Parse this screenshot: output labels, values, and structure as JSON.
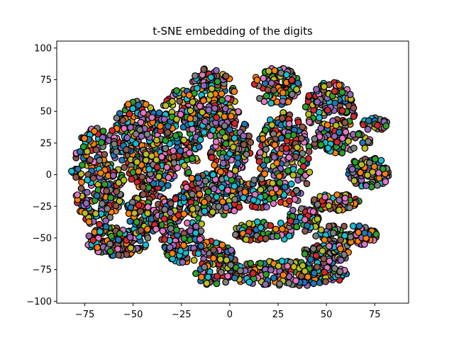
{
  "chart_data": {
    "type": "scatter",
    "title": "t-SNE embedding of the digits",
    "xlabel": "",
    "ylabel": "",
    "xlim": [
      -89.5,
      92.5
    ],
    "ylim": [
      -101.5,
      105.5
    ],
    "x_ticks": [
      -75,
      -50,
      -25,
      0,
      25,
      50,
      75
    ],
    "y_ticks": [
      -100,
      -75,
      -50,
      -25,
      0,
      25,
      50,
      75,
      100
    ],
    "grid": false,
    "legend": "none",
    "marker_edge_color": "#000000",
    "palette": [
      "#1f77b4",
      "#ff7f0e",
      "#2ca02c",
      "#d62728",
      "#9467bd",
      "#8c564b",
      "#e377c2",
      "#7f7f7f",
      "#bcbd22",
      "#17becf"
    ],
    "clusters": [
      {
        "cx": -68,
        "cy": -2,
        "rx": 14,
        "ry": 40,
        "count": 260
      },
      {
        "cx": -48,
        "cy": 32,
        "rx": 13,
        "ry": 26,
        "count": 200
      },
      {
        "cx": -40,
        "cy": 2,
        "rx": 12,
        "ry": 15,
        "count": 120
      },
      {
        "cx": -58,
        "cy": -52,
        "rx": 16,
        "ry": 12,
        "count": 150
      },
      {
        "cx": -42,
        "cy": -30,
        "rx": 12,
        "ry": 15,
        "count": 120
      },
      {
        "cx": -25,
        "cy": -43,
        "rx": 11,
        "ry": 27,
        "count": 160
      },
      {
        "cx": -26,
        "cy": 33,
        "rx": 12,
        "ry": 34,
        "count": 210
      },
      {
        "cx": -10,
        "cy": 58,
        "rx": 13,
        "ry": 28,
        "count": 190
      },
      {
        "cx": 0,
        "cy": 25,
        "rx": 11,
        "ry": 28,
        "count": 150
      },
      {
        "cx": -8,
        "cy": -15,
        "rx": 17,
        "ry": 18,
        "count": 200
      },
      {
        "cx": -8,
        "cy": -70,
        "rx": 11,
        "ry": 18,
        "count": 110
      },
      {
        "cx": 18,
        "cy": -45,
        "rx": 16,
        "ry": 8,
        "count": 80
      },
      {
        "cx": 24,
        "cy": 70,
        "rx": 12,
        "ry": 15,
        "count": 110
      },
      {
        "cx": 28,
        "cy": 12,
        "rx": 14,
        "ry": 38,
        "count": 240
      },
      {
        "cx": 52,
        "cy": 52,
        "rx": 13,
        "ry": 22,
        "count": 140
      },
      {
        "cx": 58,
        "cy": 26,
        "rx": 15,
        "ry": 9,
        "count": 80
      },
      {
        "cx": 75,
        "cy": 40,
        "rx": 7,
        "ry": 5,
        "count": 30
      },
      {
        "cx": 72,
        "cy": 2,
        "rx": 11,
        "ry": 12,
        "count": 110
      },
      {
        "cx": 55,
        "cy": -22,
        "rx": 12,
        "ry": 7,
        "count": 70
      },
      {
        "cx": 60,
        "cy": -48,
        "rx": 16,
        "ry": 9,
        "count": 90
      },
      {
        "cx": 30,
        "cy": -78,
        "rx": 32,
        "ry": 10,
        "count": 230
      },
      {
        "cx": 50,
        "cy": -62,
        "rx": 12,
        "ry": 8,
        "count": 80
      },
      {
        "cx": 38,
        "cy": -35,
        "rx": 8,
        "ry": 10,
        "count": 60
      },
      {
        "cx": 15,
        "cy": -15,
        "rx": 10,
        "ry": 12,
        "count": 80
      }
    ]
  }
}
